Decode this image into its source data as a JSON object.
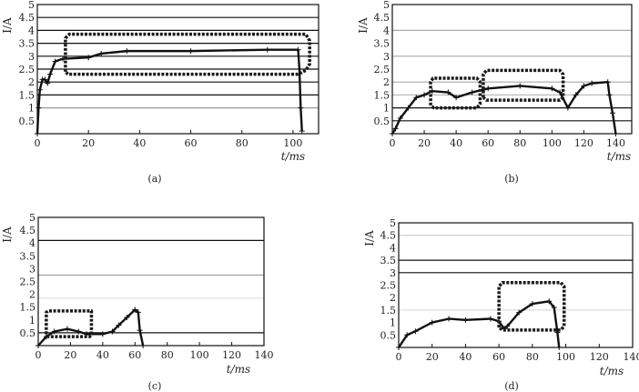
{
  "chart_data": [
    {
      "type": "line",
      "caption": "(a)",
      "xlabel": "t/ms",
      "ylabel": "I/A",
      "xlim": [
        0,
        110
      ],
      "ylim": [
        0,
        5
      ],
      "x_ticks": [
        "0",
        "20",
        "40",
        "60",
        "80",
        "100"
      ],
      "y_ticks": [
        "0.5",
        "1",
        "1.5",
        "2",
        "2.5",
        "3",
        "3.5",
        "4",
        "4.5",
        "5"
      ],
      "hlines": [
        {
          "y": 4.5,
          "color": "#111111"
        },
        {
          "y": 4,
          "color": "#111111"
        },
        {
          "y": 3.5,
          "color": "#111111"
        },
        {
          "y": 3,
          "color": "#111111"
        },
        {
          "y": 2.5,
          "color": "#111111"
        },
        {
          "y": 2,
          "color": "#111111"
        },
        {
          "y": 1.5,
          "color": "#111111"
        },
        {
          "y": 1,
          "color": "#999999"
        }
      ],
      "series": [
        {
          "name": "current",
          "style": "solid-plus",
          "points": [
            [
              0,
              0
            ],
            [
              0.5,
              1
            ],
            [
              1,
              1.7
            ],
            [
              2,
              2.1
            ],
            [
              3,
              2.1
            ],
            [
              4,
              1.95
            ],
            [
              5,
              2.3
            ],
            [
              7,
              2.8
            ],
            [
              10,
              2.9
            ],
            [
              20,
              2.95
            ],
            [
              25,
              3.1
            ],
            [
              35,
              3.2
            ],
            [
              60,
              3.2
            ],
            [
              90,
              3.25
            ],
            [
              102,
              3.25
            ],
            [
              102.5,
              2.5
            ],
            [
              103,
              1
            ],
            [
              103.5,
              0.1
            ]
          ]
        },
        {
          "name": "envelope",
          "style": "dashed",
          "points": [
            [
              11,
              2.4
            ],
            [
              11,
              3.7
            ],
            [
              12.5,
              3.85
            ],
            [
              105,
              3.85
            ],
            [
              106.5,
              3.6
            ],
            [
              106.5,
              2.7
            ],
            [
              105,
              2.45
            ],
            [
              102,
              2.3
            ],
            [
              12,
              2.3
            ],
            [
              11,
              2.4
            ]
          ]
        }
      ]
    },
    {
      "type": "line",
      "caption": "(b)",
      "xlabel": "t/ms",
      "ylabel": "I/A",
      "xlim": [
        0,
        150
      ],
      "ylim": [
        0,
        5
      ],
      "x_ticks": [
        "0",
        "20",
        "40",
        "60",
        "80",
        "100",
        "120",
        "140"
      ],
      "y_ticks": [
        "0.5",
        "1",
        "1.5",
        "2",
        "2.5",
        "3",
        "3.5",
        "4",
        "4.5",
        "5"
      ],
      "hlines": [
        {
          "y": 4,
          "color": "#aaaaaa"
        },
        {
          "y": 3,
          "color": "#aaaaaa"
        },
        {
          "y": 2,
          "color": "#aaaaaa"
        },
        {
          "y": 1.5,
          "color": "#bbbbbb"
        },
        {
          "y": 1,
          "color": "#111111"
        },
        {
          "y": 0.5,
          "color": "#111111"
        }
      ],
      "series": [
        {
          "name": "current",
          "style": "solid-plus",
          "points": [
            [
              0,
              0
            ],
            [
              2,
              0.2
            ],
            [
              5,
              0.6
            ],
            [
              10,
              1.0
            ],
            [
              15,
              1.4
            ],
            [
              20,
              1.5
            ],
            [
              25,
              1.65
            ],
            [
              35,
              1.6
            ],
            [
              40,
              1.4
            ],
            [
              50,
              1.6
            ],
            [
              60,
              1.75
            ],
            [
              80,
              1.85
            ],
            [
              100,
              1.75
            ],
            [
              105,
              1.6
            ],
            [
              110,
              1.0
            ],
            [
              115,
              1.5
            ],
            [
              120,
              1.85
            ],
            [
              125,
              1.95
            ],
            [
              135,
              2.0
            ],
            [
              136,
              1.5
            ],
            [
              138,
              0.8
            ],
            [
              140,
              0
            ]
          ]
        },
        {
          "name": "envelope-1",
          "style": "dashed",
          "points": [
            [
              24,
              1.1
            ],
            [
              24,
              2.0
            ],
            [
              25.5,
              2.15
            ],
            [
              53,
              2.15
            ],
            [
              55,
              2.0
            ],
            [
              55,
              1.15
            ],
            [
              53,
              1.0
            ],
            [
              26,
              1.0
            ],
            [
              24,
              1.1
            ]
          ]
        },
        {
          "name": "envelope-2",
          "style": "dashed",
          "points": [
            [
              57,
              1.4
            ],
            [
              57,
              2.3
            ],
            [
              59,
              2.45
            ],
            [
              105,
              2.45
            ],
            [
              107,
              2.3
            ],
            [
              107,
              1.4
            ],
            [
              105,
              1.3
            ],
            [
              59,
              1.3
            ],
            [
              57,
              1.4
            ]
          ]
        }
      ]
    },
    {
      "type": "line",
      "caption": "(c)",
      "xlabel": "t/ms",
      "ylabel": "I/A",
      "xlim": [
        0,
        140
      ],
      "ylim": [
        0,
        5
      ],
      "x_ticks": [
        "0",
        "20",
        "40",
        "60",
        "80",
        "100",
        "120",
        "140"
      ],
      "y_ticks": [
        "0.5",
        "1",
        "1.5",
        "2",
        "2.5",
        "3",
        "3.5",
        "4",
        "4.5",
        "5"
      ],
      "hlines": [
        {
          "y": 4.1,
          "color": "#111111"
        },
        {
          "y": 2.75,
          "color": "#999999"
        },
        {
          "y": 1.85,
          "color": "#e0e0e0"
        },
        {
          "y": 0.5,
          "color": "#111111"
        }
      ],
      "series": [
        {
          "name": "current",
          "style": "solid-plus",
          "points": [
            [
              0,
              0
            ],
            [
              5,
              0.35
            ],
            [
              10,
              0.55
            ],
            [
              18,
              0.65
            ],
            [
              25,
              0.55
            ],
            [
              30,
              0.45
            ],
            [
              40,
              0.45
            ],
            [
              46,
              0.55
            ],
            [
              50,
              0.8
            ],
            [
              55,
              1.1
            ],
            [
              60,
              1.4
            ],
            [
              62,
              1.3
            ],
            [
              63,
              0.6
            ],
            [
              65,
              0
            ]
          ]
        },
        {
          "name": "envelope",
          "style": "dashed",
          "points": [
            [
              5,
              0.45
            ],
            [
              5,
              1.3
            ],
            [
              6,
              1.35
            ],
            [
              33,
              1.35
            ],
            [
              33,
              0.45
            ],
            [
              32,
              0.35
            ],
            [
              6,
              0.35
            ],
            [
              5,
              0.45
            ]
          ]
        }
      ]
    },
    {
      "type": "line",
      "caption": "(d)",
      "xlabel": "t/ms",
      "ylabel": "I/A",
      "xlim": [
        0,
        140
      ],
      "ylim": [
        0,
        5
      ],
      "x_ticks": [
        "0",
        "20",
        "40",
        "60",
        "80",
        "100",
        "120",
        "140"
      ],
      "y_ticks": [
        "0.5",
        "1",
        "1.5",
        "2",
        "2.5",
        "3",
        "3.5",
        "4",
        "4.5",
        "5"
      ],
      "hlines": [
        {
          "y": 4.5,
          "color": "#cccccc"
        },
        {
          "y": 3.5,
          "color": "#111111"
        },
        {
          "y": 3,
          "color": "#111111"
        },
        {
          "y": 1.5,
          "color": "#dddddd"
        }
      ],
      "series": [
        {
          "name": "current",
          "style": "solid-plus",
          "points": [
            [
              0,
              0
            ],
            [
              5,
              0.5
            ],
            [
              10,
              0.65
            ],
            [
              20,
              1.0
            ],
            [
              30,
              1.15
            ],
            [
              40,
              1.1
            ],
            [
              55,
              1.15
            ],
            [
              60,
              1.05
            ],
            [
              63,
              0.75
            ],
            [
              65,
              0.85
            ],
            [
              72,
              1.4
            ],
            [
              80,
              1.75
            ],
            [
              90,
              1.85
            ],
            [
              93,
              1.6
            ],
            [
              95,
              0.6
            ],
            [
              96,
              0
            ]
          ]
        },
        {
          "name": "envelope",
          "style": "dashed",
          "points": [
            [
              60,
              0.8
            ],
            [
              60,
              2.45
            ],
            [
              62,
              2.6
            ],
            [
              97,
              2.6
            ],
            [
              99,
              2.45
            ],
            [
              99,
              0.85
            ],
            [
              97,
              0.7
            ],
            [
              62,
              0.7
            ],
            [
              60,
              0.8
            ]
          ]
        }
      ]
    }
  ]
}
